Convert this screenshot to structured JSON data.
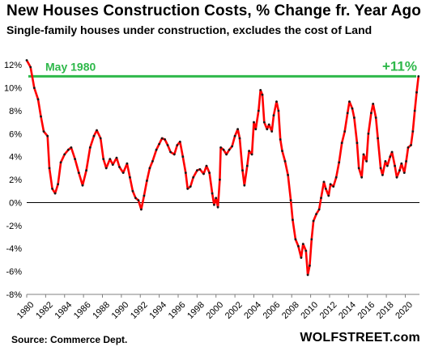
{
  "title": "New Houses Construction  Costs, % Change fr. Year Ago",
  "subtitle": "Single-family houses under construction, excludes the cost of Land",
  "source": "Source: Commerce Dept.",
  "brand": "WOLFSTREET.com",
  "colors": {
    "series_line": "#ff0000",
    "series_markers": "#1a1a1a",
    "reference_line": "#2eb84a",
    "annotation_text": "#2eb84a",
    "zero_line": "#000000",
    "axis_line": "#808080"
  },
  "annotations": {
    "reference_label": "May 1980",
    "latest_label": "+11%"
  },
  "chart_data": {
    "type": "line",
    "title": "New Houses Construction  Costs, % Change fr. Year Ago",
    "subtitle": "Single-family houses under construction, excludes the cost of Land",
    "xlabel": "",
    "ylabel": "",
    "x_range": [
      1980,
      2021.5
    ],
    "ylim": [
      -8,
      13
    ],
    "y_ticks": [
      -8,
      -6,
      -4,
      -2,
      0,
      2,
      4,
      6,
      8,
      10,
      12
    ],
    "y_tick_labels": [
      "-8%",
      "-6%",
      "-4%",
      "-2%",
      "0%",
      "2%",
      "4%",
      "6%",
      "8%",
      "10%",
      "12%"
    ],
    "x_ticks": [
      1980,
      1982,
      1984,
      1986,
      1988,
      1990,
      1992,
      1994,
      1996,
      1998,
      2000,
      2002,
      2004,
      2006,
      2008,
      2010,
      2012,
      2014,
      2016,
      2018,
      2020
    ],
    "x_tick_labels": [
      "1980",
      "1982",
      "1984",
      "1986",
      "1988",
      "1990",
      "1992",
      "1994",
      "1996",
      "1998",
      "2000",
      "2002",
      "2004",
      "2006",
      "2008",
      "2010",
      "2012",
      "2014",
      "2016",
      "2018",
      "2020"
    ],
    "grid": false,
    "reference_line": {
      "y": 11.0,
      "label": "May 1980"
    },
    "series": [
      {
        "values_note_format": "[year, percent]",
        "points": [
          [
            1980.0,
            12.4
          ],
          [
            1980.4,
            11.8
          ],
          [
            1980.8,
            10.0
          ],
          [
            1981.2,
            9.0
          ],
          [
            1981.5,
            7.5
          ],
          [
            1981.8,
            6.2
          ],
          [
            1982.2,
            5.8
          ],
          [
            1982.4,
            3.0
          ],
          [
            1982.7,
            1.2
          ],
          [
            1983.0,
            0.8
          ],
          [
            1983.3,
            1.6
          ],
          [
            1983.6,
            3.5
          ],
          [
            1984.0,
            4.2
          ],
          [
            1984.4,
            4.6
          ],
          [
            1984.7,
            4.8
          ],
          [
            1985.1,
            3.8
          ],
          [
            1985.5,
            2.6
          ],
          [
            1985.9,
            1.5
          ],
          [
            1986.3,
            2.8
          ],
          [
            1986.7,
            4.8
          ],
          [
            1987.1,
            5.8
          ],
          [
            1987.4,
            6.3
          ],
          [
            1987.8,
            5.6
          ],
          [
            1988.1,
            3.8
          ],
          [
            1988.4,
            3.0
          ],
          [
            1988.8,
            3.8
          ],
          [
            1989.1,
            3.3
          ],
          [
            1989.5,
            3.9
          ],
          [
            1989.8,
            3.1
          ],
          [
            1990.2,
            2.6
          ],
          [
            1990.6,
            3.4
          ],
          [
            1990.9,
            2.2
          ],
          [
            1991.2,
            1.0
          ],
          [
            1991.5,
            0.4
          ],
          [
            1991.8,
            0.2
          ],
          [
            1992.1,
            -0.6
          ],
          [
            1992.4,
            0.6
          ],
          [
            1992.7,
            1.9
          ],
          [
            1993.0,
            3.0
          ],
          [
            1993.3,
            3.6
          ],
          [
            1993.7,
            4.6
          ],
          [
            1994.0,
            5.1
          ],
          [
            1994.3,
            5.6
          ],
          [
            1994.6,
            5.5
          ],
          [
            1994.9,
            5.0
          ],
          [
            1995.2,
            4.4
          ],
          [
            1995.6,
            4.2
          ],
          [
            1995.9,
            5.0
          ],
          [
            1996.2,
            5.3
          ],
          [
            1996.5,
            4.0
          ],
          [
            1996.8,
            2.6
          ],
          [
            1997.0,
            1.2
          ],
          [
            1997.3,
            1.4
          ],
          [
            1997.6,
            2.2
          ],
          [
            1998.0,
            2.8
          ],
          [
            1998.3,
            2.9
          ],
          [
            1998.7,
            2.5
          ],
          [
            1999.0,
            3.2
          ],
          [
            1999.3,
            2.6
          ],
          [
            1999.6,
            0.8
          ],
          [
            1999.8,
            -0.2
          ],
          [
            2000.0,
            0.4
          ],
          [
            2000.2,
            -0.4
          ],
          [
            2000.4,
            2.0
          ],
          [
            2000.5,
            4.8
          ],
          [
            2000.8,
            4.6
          ],
          [
            2001.1,
            4.2
          ],
          [
            2001.4,
            4.6
          ],
          [
            2001.7,
            4.9
          ],
          [
            2002.0,
            5.8
          ],
          [
            2002.3,
            6.4
          ],
          [
            2002.5,
            5.6
          ],
          [
            2002.8,
            2.8
          ],
          [
            2003.0,
            1.5
          ],
          [
            2003.3,
            3.2
          ],
          [
            2003.5,
            4.5
          ],
          [
            2003.8,
            4.2
          ],
          [
            2004.0,
            7.0
          ],
          [
            2004.2,
            6.4
          ],
          [
            2004.5,
            8.0
          ],
          [
            2004.7,
            9.8
          ],
          [
            2004.9,
            9.4
          ],
          [
            2005.1,
            7.0
          ],
          [
            2005.4,
            6.4
          ],
          [
            2005.6,
            6.8
          ],
          [
            2005.9,
            6.2
          ],
          [
            2006.1,
            7.6
          ],
          [
            2006.4,
            8.8
          ],
          [
            2006.6,
            8.0
          ],
          [
            2006.8,
            5.5
          ],
          [
            2007.0,
            4.5
          ],
          [
            2007.3,
            3.6
          ],
          [
            2007.6,
            2.4
          ],
          [
            2007.9,
            0.2
          ],
          [
            2008.1,
            -1.5
          ],
          [
            2008.4,
            -3.2
          ],
          [
            2008.7,
            -3.8
          ],
          [
            2009.0,
            -4.8
          ],
          [
            2009.2,
            -3.6
          ],
          [
            2009.5,
            -4.2
          ],
          [
            2009.7,
            -6.3
          ],
          [
            2009.9,
            -5.5
          ],
          [
            2010.1,
            -3.2
          ],
          [
            2010.3,
            -1.6
          ],
          [
            2010.6,
            -1.0
          ],
          [
            2010.9,
            -0.6
          ],
          [
            2011.1,
            0.4
          ],
          [
            2011.4,
            1.8
          ],
          [
            2011.6,
            1.2
          ],
          [
            2011.9,
            0.6
          ],
          [
            2012.1,
            1.6
          ],
          [
            2012.4,
            1.4
          ],
          [
            2012.7,
            2.2
          ],
          [
            2013.0,
            3.5
          ],
          [
            2013.3,
            5.2
          ],
          [
            2013.6,
            6.2
          ],
          [
            2013.9,
            7.8
          ],
          [
            2014.1,
            8.8
          ],
          [
            2014.4,
            8.2
          ],
          [
            2014.6,
            7.4
          ],
          [
            2014.9,
            5.2
          ],
          [
            2015.1,
            3.0
          ],
          [
            2015.4,
            2.2
          ],
          [
            2015.6,
            4.2
          ],
          [
            2015.9,
            3.6
          ],
          [
            2016.1,
            6.0
          ],
          [
            2016.4,
            7.8
          ],
          [
            2016.6,
            8.6
          ],
          [
            2016.9,
            7.4
          ],
          [
            2017.1,
            5.6
          ],
          [
            2017.4,
            3.0
          ],
          [
            2017.6,
            2.4
          ],
          [
            2017.9,
            3.6
          ],
          [
            2018.1,
            3.2
          ],
          [
            2018.4,
            4.0
          ],
          [
            2018.6,
            4.4
          ],
          [
            2018.9,
            3.2
          ],
          [
            2019.1,
            2.2
          ],
          [
            2019.4,
            2.8
          ],
          [
            2019.6,
            3.4
          ],
          [
            2019.9,
            2.6
          ],
          [
            2020.1,
            3.6
          ],
          [
            2020.3,
            4.8
          ],
          [
            2020.6,
            5.0
          ],
          [
            2020.8,
            6.2
          ],
          [
            2021.0,
            8.0
          ],
          [
            2021.2,
            9.6
          ],
          [
            2021.4,
            11.0
          ]
        ]
      }
    ]
  }
}
